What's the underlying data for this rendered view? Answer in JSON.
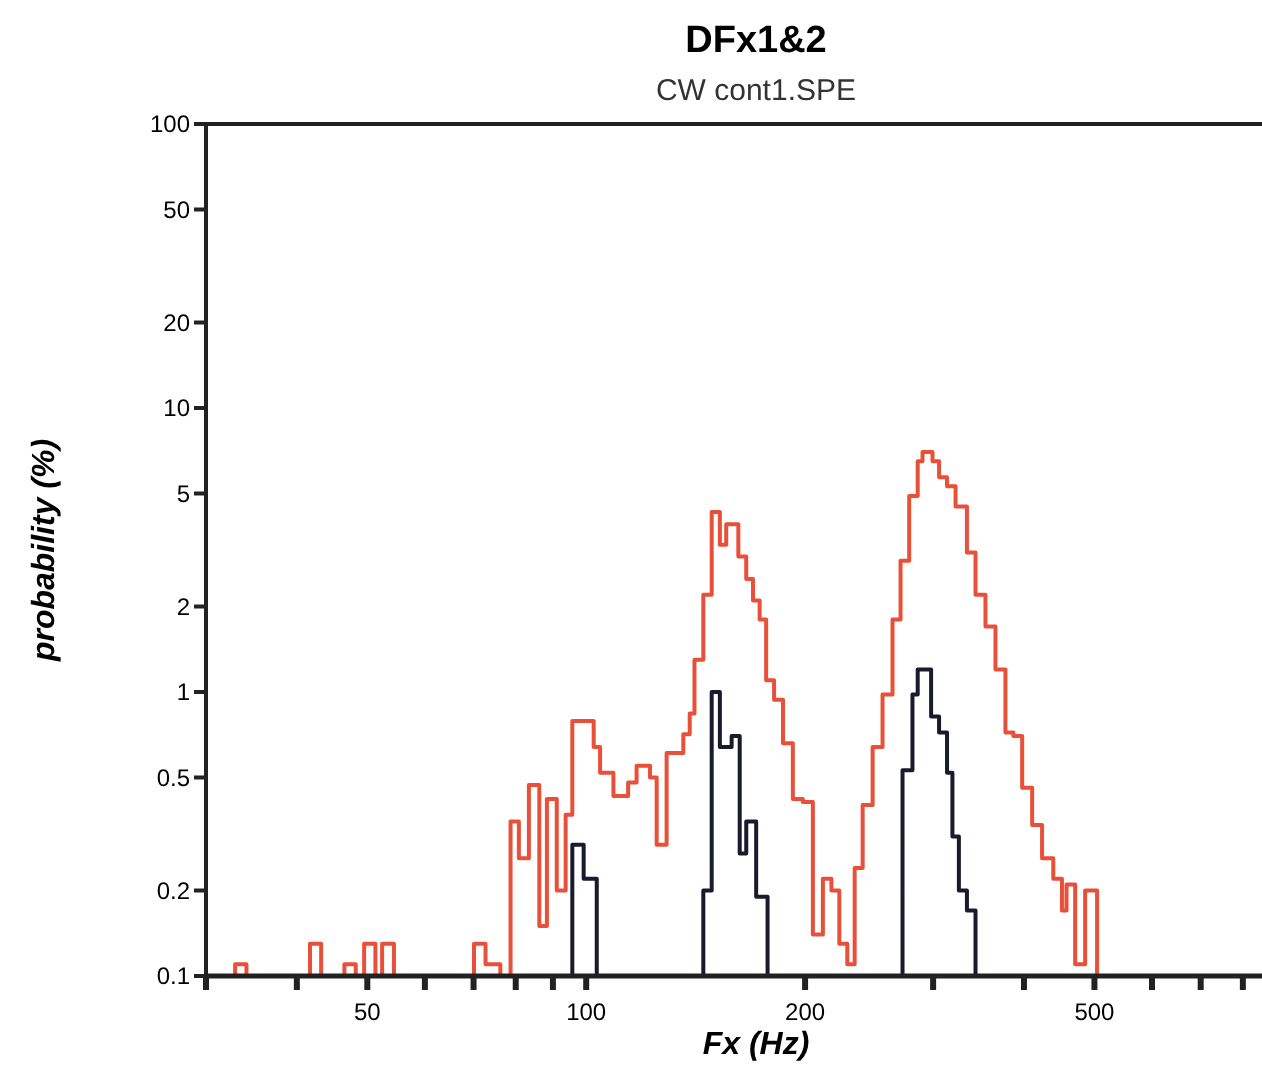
{
  "chart_data": {
    "type": "step",
    "title": "DFx1&2",
    "subtitle": "CW cont1.SPE",
    "xlabel": "Fx (Hz)",
    "ylabel": "probability (%)",
    "log": "xy",
    "xlim": [
      30,
      850
    ],
    "ylim": [
      0.1,
      100
    ],
    "xticks": [
      {
        "value": 30,
        "label": null
      },
      {
        "value": 40,
        "label": null
      },
      50,
      {
        "value": 60,
        "label": null
      },
      {
        "value": 70,
        "label": null
      },
      {
        "value": 80,
        "label": null
      },
      {
        "value": 90,
        "label": null
      },
      100,
      200,
      {
        "value": 300,
        "label": null
      },
      {
        "value": 400,
        "label": null
      },
      500,
      {
        "value": 600,
        "label": null
      },
      {
        "value": 700,
        "label": null
      },
      {
        "value": 800,
        "label": null
      }
    ],
    "yticks": [
      0.1,
      0.2,
      0.5,
      1,
      2,
      5,
      10,
      20,
      50,
      100
    ],
    "series": [
      {
        "color": "#e8503a",
        "x": [
          30,
          32.9,
          34.1,
          41.7,
          43.2,
          46.5,
          48.2,
          49.5,
          51.3,
          52.4,
          54.4,
          70.1,
          72.7,
          76.2,
          78.7,
          80.8,
          83.4,
          86.2,
          88.3,
          91.1,
          93.7,
          95.7,
          102.4,
          104.5,
          109,
          114.2,
          117.3,
          122.4,
          125,
          129,
          136,
          138.8,
          140.9,
          144.9,
          148.8,
          152.7,
          155.8,
          161.9,
          166,
          169.6,
          173.2,
          176.8,
          181.3,
          186.5,
          192.4,
          198.6,
          205,
          211.6,
          217.4,
          222.9,
          228.6,
          234,
          240,
          247.7,
          255.6,
          263.8,
          270.6,
          278.1,
          285.7,
          290.1,
          299.4,
          305.7,
          313.5,
          322.1,
          333.9,
          343.1,
          354.1,
          365.5,
          377.2,
          386.8,
          397.7,
          410.5,
          423.6,
          438.9,
          451.1,
          457.7,
          470.4,
          485.5,
          504.2
        ],
        "values": [
          0.1,
          0.11,
          0.1,
          0.13,
          0.1,
          0.11,
          0.1,
          0.13,
          0.1,
          0.13,
          0.1,
          0.13,
          0.11,
          0.1,
          0.35,
          0.26,
          0.47,
          0.15,
          0.42,
          0.2,
          0.37,
          0.79,
          0.64,
          0.52,
          0.43,
          0.48,
          0.55,
          0.5,
          0.29,
          0.61,
          0.71,
          0.84,
          1.3,
          2.2,
          4.3,
          3.3,
          3.9,
          3,
          2.5,
          2.1,
          1.8,
          1.1,
          0.94,
          0.66,
          0.42,
          0.41,
          0.14,
          0.22,
          0.2,
          0.13,
          0.11,
          0.24,
          0.4,
          0.64,
          0.98,
          1.8,
          2.9,
          4.9,
          6.5,
          7,
          6.5,
          5.7,
          5.3,
          4.5,
          3.1,
          2.2,
          1.7,
          1.2,
          0.72,
          0.7,
          0.46,
          0.34,
          0.26,
          0.22,
          0.17,
          0.21,
          0.11,
          0.2,
          0.1
        ]
      },
      {
        "color": "#1a1a2e",
        "x": [
          30,
          95.7,
          99.2,
          103.4,
          144.9,
          148.8,
          152.7,
          158.5,
          162.6,
          166,
          171.3,
          177.6,
          272.3,
          281,
          285.7,
          298.1,
          305.7,
          313.5,
          318.9,
          325.5,
          333.9,
          343.1
        ],
        "values": [
          0.1,
          0.29,
          0.22,
          0.1,
          0.2,
          1,
          0.64,
          0.7,
          0.27,
          0.35,
          0.19,
          0.1,
          0.53,
          0.98,
          1.2,
          0.82,
          0.72,
          0.52,
          0.31,
          0.2,
          0.17,
          0.1
        ]
      }
    ]
  }
}
